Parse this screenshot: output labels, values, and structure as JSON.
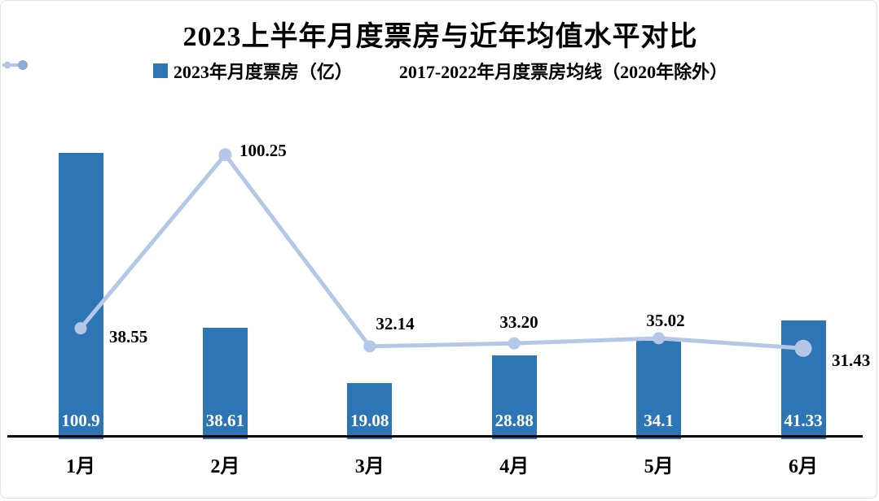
{
  "title": "2023上半年月度票房与近年均值水平对比",
  "colors": {
    "bar": "#2E75B6",
    "line": "#B4C7E7",
    "line_marker": "#AFC4E8",
    "legend_dot_right": "#8FAADC",
    "axis": "#000000",
    "bar_label_text": "#FFFFFF",
    "text": "#000000"
  },
  "chart_data": {
    "type": "bar",
    "subtype": "bar-line combo",
    "title": "2023上半年月度票房与近年均值水平对比",
    "categories": [
      "1月",
      "2月",
      "3月",
      "4月",
      "5月",
      "6月"
    ],
    "series": [
      {
        "name": "2023年月度票房（亿）",
        "type": "bar",
        "color": "#2E75B6",
        "values": [
          100.9,
          38.61,
          19.08,
          28.88,
          34.1,
          41.33
        ],
        "labels": [
          "100.9",
          "38.61",
          "19.08",
          "28.88",
          "34.1",
          "41.33"
        ],
        "label_position": "inside-base",
        "label_color": "#FFFFFF"
      },
      {
        "name": "2017-2022年月度票房均线（2020年除外）",
        "type": "line",
        "color": "#B4C7E7",
        "values": [
          38.55,
          100.25,
          32.14,
          33.2,
          35.02,
          31.43
        ],
        "labels": [
          "38.55",
          "100.25",
          "32.14",
          "33.20",
          "35.02",
          "31.43"
        ],
        "label_position": "near-marker",
        "label_color": "#000000"
      }
    ],
    "xlabel": "",
    "ylabel": "",
    "ylim": [
      0,
      112
    ],
    "grid": false,
    "y_axis_visible": false,
    "legend_position": "top"
  }
}
